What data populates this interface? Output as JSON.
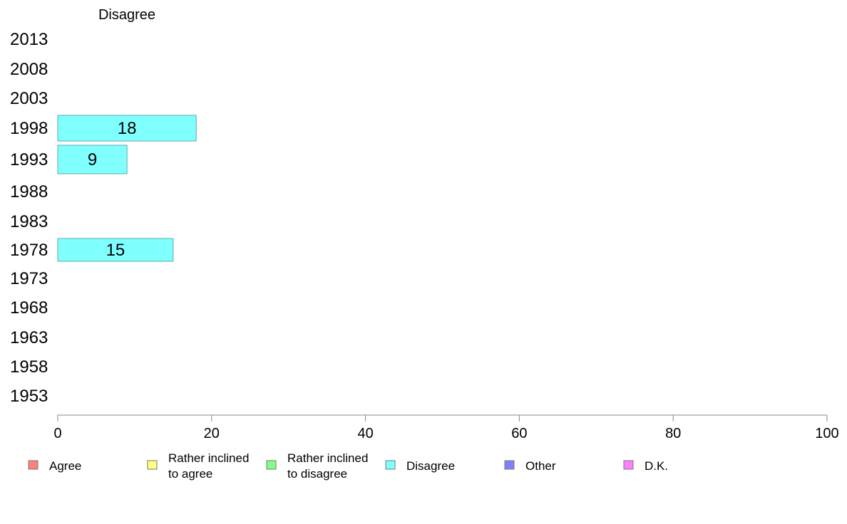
{
  "chart_data": {
    "type": "bar",
    "orientation": "horizontal",
    "title": "Disagree",
    "categories": [
      "2013",
      "2008",
      "2003",
      "1998",
      "1993",
      "1988",
      "1983",
      "1978",
      "1973",
      "1968",
      "1963",
      "1958",
      "1953"
    ],
    "series": [
      {
        "name": "Disagree",
        "color": "#80ffff",
        "values": [
          null,
          null,
          null,
          18,
          9,
          null,
          null,
          15,
          null,
          null,
          null,
          null,
          null
        ]
      }
    ],
    "xlim": [
      0,
      100
    ],
    "xticks": [
      "0",
      "20",
      "40",
      "60",
      "80",
      "100"
    ],
    "grid": false,
    "legend": {
      "placement": "bottom",
      "items": [
        {
          "label_lines": [
            "Agree"
          ],
          "color": "#ff8080"
        },
        {
          "label_lines": [
            "Rather inclined",
            "to agree"
          ],
          "color": "#ffff80"
        },
        {
          "label_lines": [
            "Rather inclined",
            "to disagree"
          ],
          "color": "#80ff80"
        },
        {
          "label_lines": [
            "Disagree"
          ],
          "color": "#80ffff"
        },
        {
          "label_lines": [
            "Other"
          ],
          "color": "#8080ff"
        },
        {
          "label_lines": [
            "D.K."
          ],
          "color": "#ff80ff"
        }
      ]
    }
  }
}
